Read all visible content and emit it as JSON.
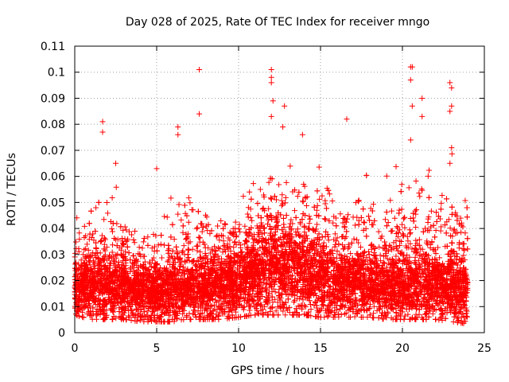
{
  "chart_data": {
    "type": "scatter",
    "title": "Day 028 of 2025, Rate Of TEC Index for receiver mngo",
    "xlabel": "GPS time / hours",
    "ylabel": "ROTI / TECUs",
    "xlim": [
      0,
      25
    ],
    "ylim": [
      0,
      0.11
    ],
    "xticks": [
      0,
      5,
      10,
      15,
      20,
      25
    ],
    "yticks": [
      0,
      0.01,
      0.02,
      0.03,
      0.04,
      0.05,
      0.06,
      0.07,
      0.08,
      0.09,
      0.1,
      0.11
    ],
    "xtick_labels": [
      "0",
      "5",
      "10",
      "15",
      "20",
      "25"
    ],
    "ytick_labels": [
      "0",
      "0.01",
      "0.02",
      "0.03",
      "0.04",
      "0.05",
      "0.06",
      "0.07",
      "0.08",
      "0.09",
      "0.1",
      "0.11"
    ],
    "grid": true,
    "marker": "plus",
    "series_color": "#ff0000",
    "notable_points": [
      {
        "x": 1.7,
        "y": 0.081
      },
      {
        "x": 1.7,
        "y": 0.077
      },
      {
        "x": 2.5,
        "y": 0.065
      },
      {
        "x": 5.0,
        "y": 0.063
      },
      {
        "x": 6.3,
        "y": 0.079
      },
      {
        "x": 6.3,
        "y": 0.076
      },
      {
        "x": 7.6,
        "y": 0.101
      },
      {
        "x": 7.6,
        "y": 0.084
      },
      {
        "x": 12.0,
        "y": 0.101
      },
      {
        "x": 12.0,
        "y": 0.098
      },
      {
        "x": 12.0,
        "y": 0.096
      },
      {
        "x": 12.1,
        "y": 0.089
      },
      {
        "x": 12.0,
        "y": 0.083
      },
      {
        "x": 12.8,
        "y": 0.087
      },
      {
        "x": 12.7,
        "y": 0.079
      },
      {
        "x": 13.9,
        "y": 0.076
      },
      {
        "x": 16.6,
        "y": 0.082
      },
      {
        "x": 20.5,
        "y": 0.102
      },
      {
        "x": 20.6,
        "y": 0.102
      },
      {
        "x": 20.5,
        "y": 0.097
      },
      {
        "x": 20.6,
        "y": 0.087
      },
      {
        "x": 20.5,
        "y": 0.074
      },
      {
        "x": 21.2,
        "y": 0.09
      },
      {
        "x": 21.2,
        "y": 0.083
      },
      {
        "x": 22.9,
        "y": 0.096
      },
      {
        "x": 23.0,
        "y": 0.094
      },
      {
        "x": 23.0,
        "y": 0.087
      },
      {
        "x": 22.9,
        "y": 0.085
      },
      {
        "x": 23.0,
        "y": 0.071
      },
      {
        "x": 22.9,
        "y": 0.065
      }
    ],
    "envelope": {
      "x": [
        0,
        1,
        2,
        3,
        4,
        5,
        6,
        7,
        8,
        9,
        10,
        11,
        12,
        13,
        14,
        15,
        16,
        17,
        18,
        19,
        20,
        21,
        22,
        23,
        24
      ],
      "median": [
        0.016,
        0.017,
        0.017,
        0.016,
        0.015,
        0.015,
        0.016,
        0.017,
        0.017,
        0.017,
        0.019,
        0.022,
        0.024,
        0.024,
        0.023,
        0.021,
        0.019,
        0.018,
        0.018,
        0.017,
        0.017,
        0.018,
        0.017,
        0.017,
        0.016
      ],
      "upper": [
        0.04,
        0.05,
        0.055,
        0.045,
        0.042,
        0.043,
        0.048,
        0.052,
        0.045,
        0.043,
        0.05,
        0.058,
        0.062,
        0.065,
        0.063,
        0.06,
        0.052,
        0.048,
        0.058,
        0.05,
        0.055,
        0.058,
        0.056,
        0.055,
        0.05
      ],
      "lower": [
        0.008,
        0.006,
        0.006,
        0.006,
        0.005,
        0.005,
        0.005,
        0.006,
        0.006,
        0.006,
        0.007,
        0.008,
        0.008,
        0.008,
        0.008,
        0.007,
        0.007,
        0.007,
        0.007,
        0.006,
        0.006,
        0.006,
        0.006,
        0.005,
        0.004
      ]
    },
    "sample_count": 9000
  }
}
